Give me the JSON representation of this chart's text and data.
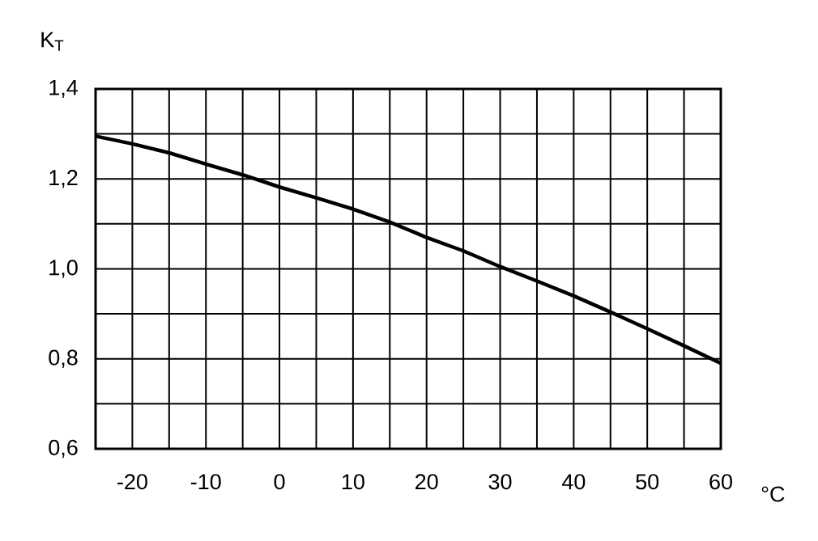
{
  "chart_data": {
    "type": "line",
    "xlabel": "°C",
    "ylabel": "K$_{T}$",
    "x": [
      -25,
      -20,
      -15,
      -10,
      -5,
      0,
      5,
      10,
      15,
      20,
      25,
      30,
      35,
      40,
      45,
      50,
      55,
      60
    ],
    "series": [
      {
        "color": "#000000",
        "values": [
          1.295,
          1.278,
          1.258,
          1.233,
          1.209,
          1.182,
          1.158,
          1.133,
          1.104,
          1.07,
          1.04,
          1.005,
          0.973,
          0.94,
          0.904,
          0.867,
          0.829,
          0.79
        ]
      }
    ],
    "xlim": [
      -25,
      60
    ],
    "ylim": [
      0.6,
      1.4
    ],
    "xticks": [
      {
        "value": -25,
        "label": null
      },
      -20,
      {
        "value": -15,
        "label": null
      },
      -10,
      {
        "value": -5,
        "label": null
      },
      0,
      {
        "value": 5,
        "label": null
      },
      10,
      {
        "value": 15,
        "label": null
      },
      20,
      {
        "value": 25,
        "label": null
      },
      30,
      {
        "value": 35,
        "label": null
      },
      40,
      {
        "value": 45,
        "label": null
      },
      50,
      {
        "value": 55,
        "label": null
      },
      60
    ],
    "yticks": [
      {
        "value": 0.6,
        "label": "0,6"
      },
      {
        "value": 0.7,
        "label": null
      },
      {
        "value": 0.8,
        "label": "0,8"
      },
      {
        "value": 0.9,
        "label": null
      },
      {
        "value": 1.0,
        "label": "1,0"
      },
      {
        "value": 1.1,
        "label": null
      },
      {
        "value": 1.2,
        "label": "1,2"
      },
      {
        "value": 1.3,
        "label": null
      },
      {
        "value": 1.4,
        "label": "1,4"
      }
    ],
    "grid": true,
    "marker": "none",
    "line_style": "solid"
  }
}
